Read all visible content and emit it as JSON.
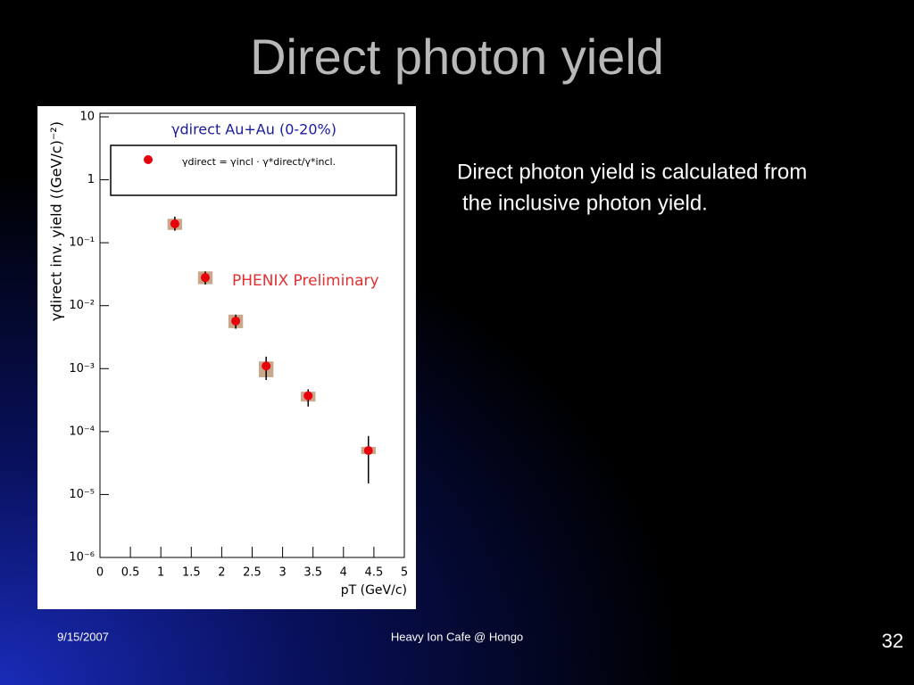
{
  "slide": {
    "title": "Direct photon yield",
    "body": [
      "Direct photon yield is calculated from",
      "the inclusive photon yield."
    ],
    "footer_date": "9/15/2007",
    "footer_center": "Heavy Ion Cafe @ Hongo",
    "page_number": "32"
  },
  "chart_data": {
    "type": "scatter",
    "title": "γdirect Au+Au (0-20%)",
    "annotation": "PHENIX Preliminary",
    "x_label": "pT (GeV/c)",
    "y_label": "γdirect inv. yield ((GeV/c)⁻²)",
    "y_scale": "log",
    "xlim": [
      0,
      5
    ],
    "xticks": [
      0,
      0.5,
      1,
      1.5,
      2,
      2.5,
      3,
      3.5,
      4,
      4.5,
      5
    ],
    "ylim": [
      1e-06,
      10
    ],
    "yticks": [
      {
        "value": 10,
        "label": "10"
      },
      {
        "value": 1,
        "label": "1"
      },
      {
        "value": 0.1,
        "label": "10⁻¹"
      },
      {
        "value": 0.01,
        "label": "10⁻²"
      },
      {
        "value": 0.001,
        "label": "10⁻³"
      },
      {
        "value": 0.0001,
        "label": "10⁻⁴"
      },
      {
        "value": 1e-05,
        "label": "10⁻⁵"
      },
      {
        "value": 1e-06,
        "label": "10⁻⁶"
      }
    ],
    "series": [
      {
        "name": "γdirect = γincl · γ*direct/γ*incl.",
        "color": "#e8000b",
        "x": [
          1.23,
          1.73,
          2.23,
          2.73,
          3.42,
          4.41
        ],
        "values": [
          0.2,
          0.028,
          0.0057,
          0.0011,
          0.00037,
          5e-05
        ],
        "ylow": [
          0.155,
          0.0217,
          0.0043,
          0.00066,
          0.00025,
          1.5e-05
        ],
        "yhigh": [
          0.26,
          0.035,
          0.0072,
          0.00155,
          0.00047,
          8.5e-05
        ],
        "sys_low": [
          0.16,
          0.022,
          0.0044,
          0.00073,
          0.0003,
          4.4e-05
        ],
        "sys_high": [
          0.24,
          0.035,
          0.0072,
          0.0013,
          0.00043,
          5.7e-05
        ],
        "sys_color": "#c8a78a"
      }
    ]
  }
}
